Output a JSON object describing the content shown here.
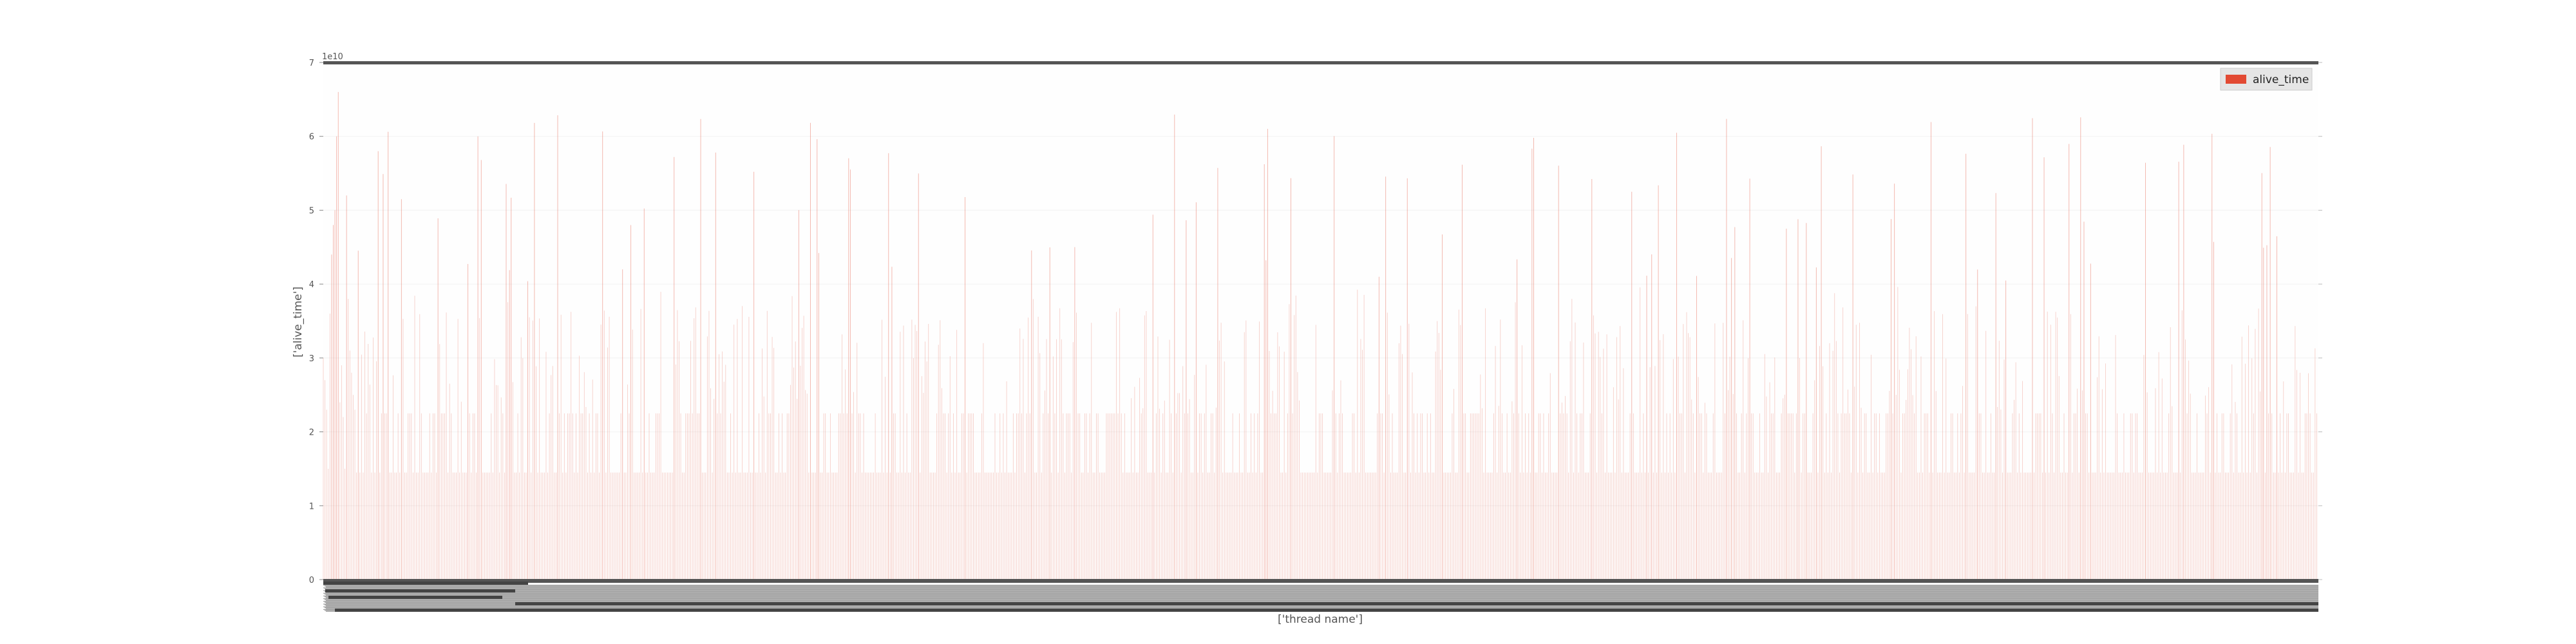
{
  "chart_data": {
    "type": "bar",
    "title": "",
    "xlabel": "['thread name']",
    "ylabel": "['alive_time']",
    "y_offset_label": "1e10",
    "ylim": [
      0,
      70000000000
    ],
    "yticks": [
      {
        "value": 0,
        "label": "0"
      },
      {
        "value": 10000000000,
        "label": "1"
      },
      {
        "value": 20000000000,
        "label": "2"
      },
      {
        "value": 30000000000,
        "label": "3"
      },
      {
        "value": 40000000000,
        "label": "4"
      },
      {
        "value": 50000000000,
        "label": "5"
      },
      {
        "value": 60000000000,
        "label": "6"
      },
      {
        "value": 70000000000,
        "label": "7"
      }
    ],
    "legend": {
      "position": "top-right",
      "entries": [
        {
          "name": "alive_time",
          "color": "#E24A33"
        }
      ]
    },
    "bar_color": "#E24A33",
    "bar_count": 1200,
    "background": "#E5E5E5",
    "grid": true,
    "values_sample": [
      30000000000,
      27000000000,
      23000000000,
      15000000000,
      36000000000,
      44000000000,
      48000000000,
      50000000000,
      60000000000,
      66000000000,
      24000000000,
      29000000000,
      22000000000,
      15000000000,
      52000000000,
      38000000000,
      31000000000,
      28000000000,
      25000000000,
      23000000000
    ]
  }
}
